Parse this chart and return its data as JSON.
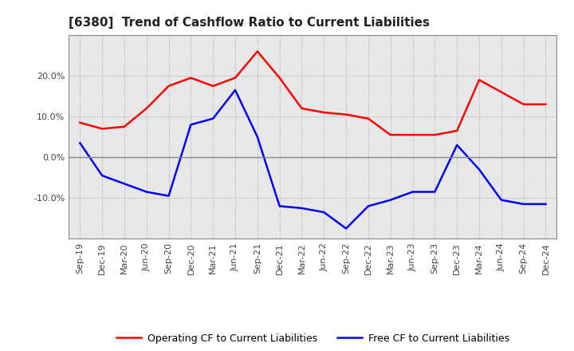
{
  "title": "[6380]  Trend of Cashflow Ratio to Current Liabilities",
  "x_labels": [
    "Sep-19",
    "Dec-19",
    "Mar-20",
    "Jun-20",
    "Sep-20",
    "Dec-20",
    "Mar-21",
    "Jun-21",
    "Sep-21",
    "Dec-21",
    "Mar-22",
    "Jun-22",
    "Sep-22",
    "Dec-22",
    "Mar-23",
    "Jun-23",
    "Sep-23",
    "Dec-23",
    "Mar-24",
    "Jun-24",
    "Sep-24",
    "Dec-24"
  ],
  "operating_cf": [
    8.5,
    7.0,
    7.5,
    12.0,
    17.5,
    19.5,
    17.5,
    19.5,
    26.0,
    19.5,
    12.0,
    11.0,
    10.5,
    9.5,
    5.5,
    5.5,
    5.5,
    6.5,
    19.0,
    16.0,
    13.0,
    13.0
  ],
  "free_cf": [
    3.5,
    -4.5,
    -6.5,
    -8.5,
    -9.5,
    8.0,
    9.5,
    16.5,
    5.0,
    -12.0,
    -12.5,
    -13.5,
    -17.5,
    -12.0,
    -10.5,
    -8.5,
    -8.5,
    3.0,
    -3.0,
    -10.5,
    -11.5,
    -11.5
  ],
  "ylim": [
    -20,
    30
  ],
  "yticks": [
    -10.0,
    0.0,
    10.0,
    20.0
  ],
  "operating_color": "#FF0000",
  "free_color": "#0000FF",
  "bg_color": "#FFFFFF",
  "plot_bg_color": "#E8E8E8",
  "grid_color": "#AAAAAA",
  "zero_line_color": "#888888",
  "legend_operating": "Operating CF to Current Liabilities",
  "legend_free": "Free CF to Current Liabilities",
  "title_fontsize": 11,
  "tick_fontsize": 8,
  "legend_fontsize": 9
}
